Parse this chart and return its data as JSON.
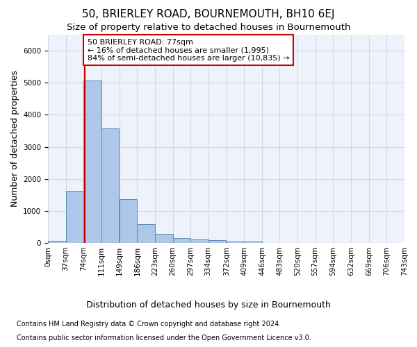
{
  "title": "50, BRIERLEY ROAD, BOURNEMOUTH, BH10 6EJ",
  "subtitle": "Size of property relative to detached houses in Bournemouth",
  "xlabel": "Distribution of detached houses by size in Bournemouth",
  "ylabel": "Number of detached properties",
  "footnote1": "Contains HM Land Registry data © Crown copyright and database right 2024.",
  "footnote2": "Contains public sector information licensed under the Open Government Licence v3.0.",
  "bin_edges": [
    0,
    37,
    74,
    111,
    149,
    186,
    223,
    260,
    297,
    334,
    372,
    409,
    446,
    483,
    520,
    557,
    594,
    632,
    669,
    706,
    743
  ],
  "bar_heights": [
    75,
    1625,
    5075,
    3575,
    1375,
    575,
    285,
    145,
    115,
    80,
    50,
    50,
    0,
    0,
    0,
    0,
    0,
    0,
    0,
    0
  ],
  "bar_color": "#aec6e8",
  "bar_edgecolor": "#5b8db8",
  "property_size": 77,
  "annotation_text": "50 BRIERLEY ROAD: 77sqm\n← 16% of detached houses are smaller (1,995)\n84% of semi-detached houses are larger (10,835) →",
  "annotation_box_color": "#ffffff",
  "annotation_box_edgecolor": "#cc0000",
  "red_line_color": "#cc0000",
  "ylim": [
    0,
    6500
  ],
  "xlim": [
    0,
    743
  ],
  "grid_color": "#d0d8e8",
  "background_color": "#eef2fa",
  "tick_labels": [
    "0sqm",
    "37sqm",
    "74sqm",
    "111sqm",
    "149sqm",
    "186sqm",
    "223sqm",
    "260sqm",
    "297sqm",
    "334sqm",
    "372sqm",
    "409sqm",
    "446sqm",
    "483sqm",
    "520sqm",
    "557sqm",
    "594sqm",
    "632sqm",
    "669sqm",
    "706sqm",
    "743sqm"
  ],
  "title_fontsize": 11,
  "subtitle_fontsize": 9.5,
  "axis_label_fontsize": 9,
  "tick_fontsize": 7.5,
  "annotation_fontsize": 8,
  "footnote_fontsize": 7
}
